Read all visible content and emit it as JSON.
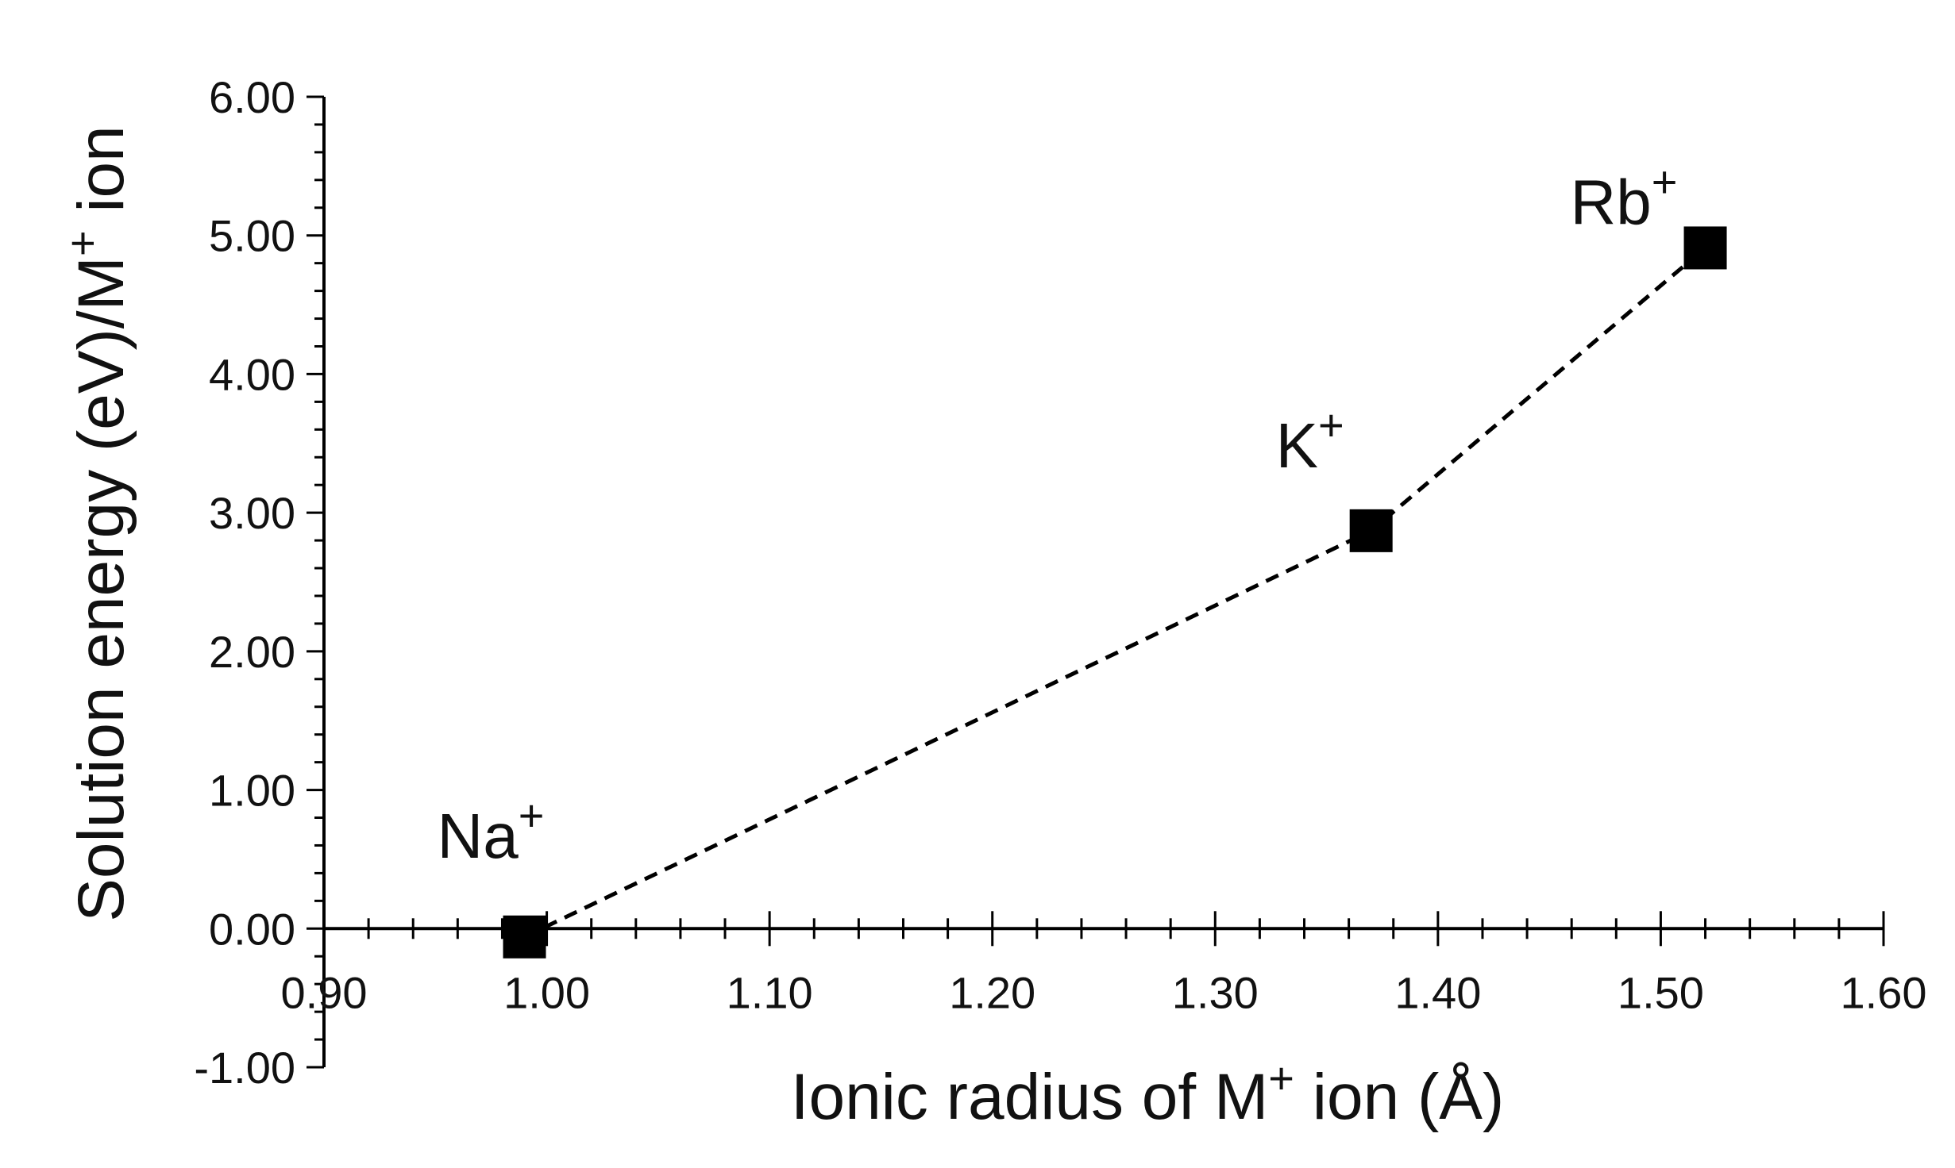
{
  "chart_data": {
    "type": "line",
    "title": "",
    "xlabel_parts": [
      "Ionic radius of M",
      "+",
      " ion (Å)"
    ],
    "ylabel_parts": [
      "Solution energy (eV)/M",
      "+",
      " ion"
    ],
    "xlim": [
      0.9,
      1.6
    ],
    "ylim": [
      -1.0,
      6.0
    ],
    "x_ticks": [
      "0.90",
      "1.00",
      "1.10",
      "1.20",
      "1.30",
      "1.40",
      "1.50",
      "1.60"
    ],
    "y_ticks": [
      "-1.00",
      "0.00",
      "1.00",
      "2.00",
      "3.00",
      "4.00",
      "5.00",
      "6.00"
    ],
    "grid": false,
    "legend": "none",
    "line_style": "dashed",
    "marker": "square",
    "color": "#000000",
    "points": [
      {
        "ion": "Na",
        "charge": "+",
        "x": 0.99,
        "y": -0.06
      },
      {
        "ion": "K",
        "charge": "+",
        "x": 1.37,
        "y": 2.87
      },
      {
        "ion": "Rb",
        "charge": "+",
        "x": 1.52,
        "y": 4.91
      }
    ]
  }
}
